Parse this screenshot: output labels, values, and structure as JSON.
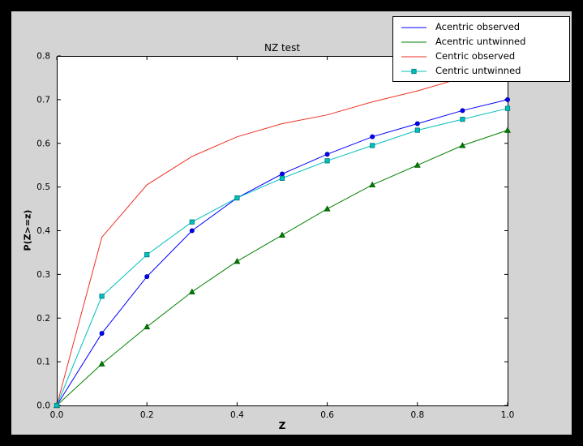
{
  "figure": {
    "background": "#000000",
    "facecolor": "#d4d4d4",
    "axes_facecolor": "#ffffff"
  },
  "chart_data": {
    "type": "line",
    "title": "NZ test",
    "xlabel": "Z",
    "ylabel": "P(Z>=z)",
    "xlim": [
      0.0,
      1.0
    ],
    "ylim": [
      0.0,
      0.8
    ],
    "xticks": [
      0.0,
      0.2,
      0.4,
      0.6,
      0.8,
      1.0
    ],
    "yticks": [
      0.0,
      0.1,
      0.2,
      0.3,
      0.4,
      0.5,
      0.6,
      0.7,
      0.8
    ],
    "grid": false,
    "legend_position": "upper right",
    "x": [
      0.0,
      0.1,
      0.2,
      0.3,
      0.4,
      0.5,
      0.6,
      0.7,
      0.8,
      0.9,
      1.0
    ],
    "series": [
      {
        "name": "Acentric observed",
        "color": "#0000ff",
        "marker": "circle",
        "marker_edge": "#000099",
        "legend_marker": false,
        "values": [
          0.0,
          0.165,
          0.295,
          0.4,
          0.475,
          0.53,
          0.575,
          0.615,
          0.645,
          0.675,
          0.7
        ]
      },
      {
        "name": "Acentric untwinned",
        "color": "#008000",
        "marker": "triangle",
        "marker_edge": "#005500",
        "legend_marker": false,
        "values": [
          0.0,
          0.095,
          0.18,
          0.26,
          0.33,
          0.39,
          0.45,
          0.505,
          0.55,
          0.595,
          0.63
        ]
      },
      {
        "name": "Centric observed",
        "color": "#ee3124",
        "marker": "none",
        "legend_marker": false,
        "values": [
          0.0,
          0.385,
          0.505,
          0.57,
          0.615,
          0.645,
          0.665,
          0.695,
          0.72,
          0.75,
          0.775
        ]
      },
      {
        "name": "Centric untwinned",
        "color": "#00bfbf",
        "marker": "square",
        "marker_edge": "#007777",
        "legend_marker": true,
        "values": [
          0.0,
          0.25,
          0.345,
          0.42,
          0.475,
          0.52,
          0.56,
          0.595,
          0.63,
          0.655,
          0.68
        ]
      }
    ]
  }
}
